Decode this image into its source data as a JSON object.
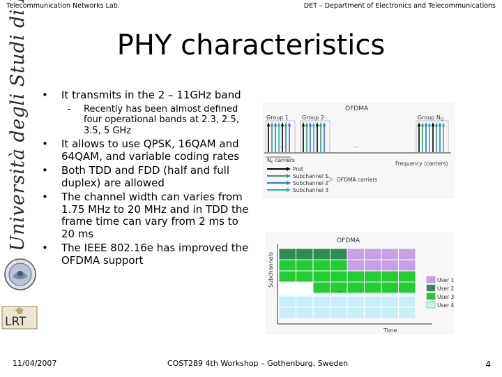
{
  "header": {
    "left": "Telecommunication Networks Lab.",
    "right": "DET – Department of Electronics and Telecommunications"
  },
  "title": "PHY characteristics",
  "sidebar": {
    "university_text": "Università degli Studi di Firenze",
    "logo_text": "LRT"
  },
  "bullets": [
    {
      "text": "It transmits in the 2 – 11GHz band",
      "sub": [
        "Recently has been almost defined four operational bands at 2.3, 2.5, 3.5, 5 GHz"
      ]
    },
    {
      "text": "It allows to use QPSK, 16QAM and 64QAM, and variable coding rates",
      "sub": []
    },
    {
      "text": "Both TDD and FDD (half  and full duplex) are allowed",
      "sub": []
    },
    {
      "text": "The channel width can varies from 1.75 MHz to 20 MHz and in TDD the frame time can vary from 2 ms to 20 ms",
      "sub": []
    },
    {
      "text": "The IEEE 802.16e has improved the OFDMA support",
      "sub": []
    }
  ],
  "bullet_symbol": "•",
  "dash_symbol": "–",
  "figure1": {
    "title": "OFDMA",
    "group1": "Group 1",
    "group2": "Group 2",
    "groupN": "Group N",
    "groupN_sub": "G",
    "ellipsis": "...",
    "nc_label": "N",
    "nc_sub": "c",
    "nc_suffix": " carriers",
    "freq_label": "Frequency (carriers)",
    "legend": [
      "Prot",
      "Subchannel 1",
      "Subchannel 2",
      "Subchannel 3"
    ],
    "ofdma_carriers": "OFDMA carriers",
    "colors": {
      "prot": "#000000",
      "sub1": "#2d9a6e",
      "sub2": "#3a6fd0",
      "sub3": "#14b8b0"
    }
  },
  "figure2": {
    "title": "OFDMA",
    "y_label": "Subchannels",
    "x_label": "Time",
    "ellipsis": "...",
    "users": [
      "User 1",
      "User 2",
      "User 3",
      "User 4"
    ],
    "colors": {
      "user1": "#c9a0e6",
      "user2": "#2e8b57",
      "user3": "#22cc33",
      "user4": "#c8f0f8"
    }
  },
  "footer": {
    "date": "11/04/2007",
    "center": "COST289 4th Workshop – Gothenburg, Sweden",
    "page": "4"
  }
}
